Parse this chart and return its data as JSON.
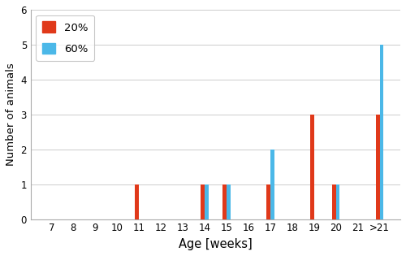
{
  "categories": [
    "7",
    "8",
    "9",
    "10",
    "11",
    "12",
    "13",
    "14",
    "15",
    "16",
    "17",
    "18",
    "19",
    "20",
    "21",
    ">21"
  ],
  "values_20": [
    0,
    0,
    0,
    0,
    1,
    0,
    0,
    1,
    1,
    0,
    1,
    0,
    3,
    1,
    0,
    3
  ],
  "values_60": [
    0,
    0,
    0,
    0,
    0,
    0,
    0,
    1,
    1,
    0,
    2,
    0,
    0,
    1,
    0,
    5
  ],
  "color_20": "#E0391A",
  "color_60": "#4BB8E8",
  "xlabel": "Age [weeks]",
  "ylabel": "Number of animals",
  "ylim": [
    0,
    6
  ],
  "yticks": [
    0,
    1,
    2,
    3,
    4,
    5,
    6
  ],
  "legend_20": "20%",
  "legend_60": "60%",
  "bar_width": 0.18,
  "grid_color": "#CCCCCC",
  "bg_color": "#FFFFFF"
}
